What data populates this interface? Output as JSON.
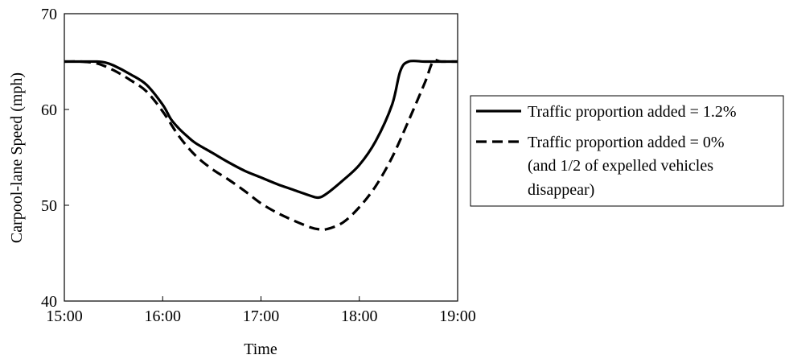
{
  "chart_data": {
    "type": "line",
    "xlabel": "Time",
    "ylabel": "Carpool-lane Speed (mph)",
    "xlim": [
      "15:00",
      "19:00"
    ],
    "ylim": [
      40,
      70
    ],
    "x_ticks": [
      "15:00",
      "16:00",
      "17:00",
      "18:00",
      "19:00"
    ],
    "y_ticks": [
      "40",
      "50",
      "60",
      "70"
    ],
    "grid": false,
    "legend_position": "right",
    "series": [
      {
        "name": "Traffic proportion added = 1.2%",
        "style": "solid",
        "color": "#000000",
        "x": [
          "15:00",
          "15:10",
          "15:20",
          "15:25",
          "15:30",
          "15:40",
          "15:50",
          "16:00",
          "16:05",
          "16:10",
          "16:15",
          "16:20",
          "16:30",
          "16:40",
          "16:50",
          "17:00",
          "17:10",
          "17:20",
          "17:30",
          "17:35",
          "17:40",
          "17:50",
          "18:00",
          "18:10",
          "18:20",
          "18:25",
          "18:30",
          "18:40",
          "18:50",
          "19:00"
        ],
        "values": [
          65,
          65,
          65,
          64.9,
          64.6,
          63.7,
          62.6,
          60.5,
          59,
          58,
          57.2,
          56.5,
          55.5,
          54.5,
          53.6,
          52.9,
          52.2,
          51.6,
          51.0,
          50.8,
          51.2,
          52.6,
          54.2,
          56.7,
          60.5,
          64.0,
          65,
          65,
          65,
          65
        ]
      },
      {
        "name": "Traffic proportion added = 0%",
        "name_line2": "(and 1/2 of expelled vehicles",
        "name_line3": "disappear)",
        "style": "dashed",
        "color": "#000000",
        "x": [
          "15:00",
          "15:10",
          "15:20",
          "15:30",
          "15:40",
          "15:50",
          "16:00",
          "16:10",
          "16:20",
          "16:30",
          "16:40",
          "16:50",
          "17:00",
          "17:10",
          "17:20",
          "17:30",
          "17:35",
          "17:40",
          "17:50",
          "18:00",
          "18:10",
          "18:20",
          "18:30",
          "18:40",
          "18:45",
          "18:50",
          "19:00"
        ],
        "values": [
          65,
          65,
          64.8,
          64.1,
          63.1,
          61.9,
          59.8,
          57.2,
          55.2,
          53.8,
          52.7,
          51.5,
          50.2,
          49.2,
          48.4,
          47.7,
          47.5,
          47.5,
          48.2,
          49.8,
          52.0,
          55.0,
          58.8,
          62.8,
          65,
          65,
          65
        ]
      }
    ]
  }
}
